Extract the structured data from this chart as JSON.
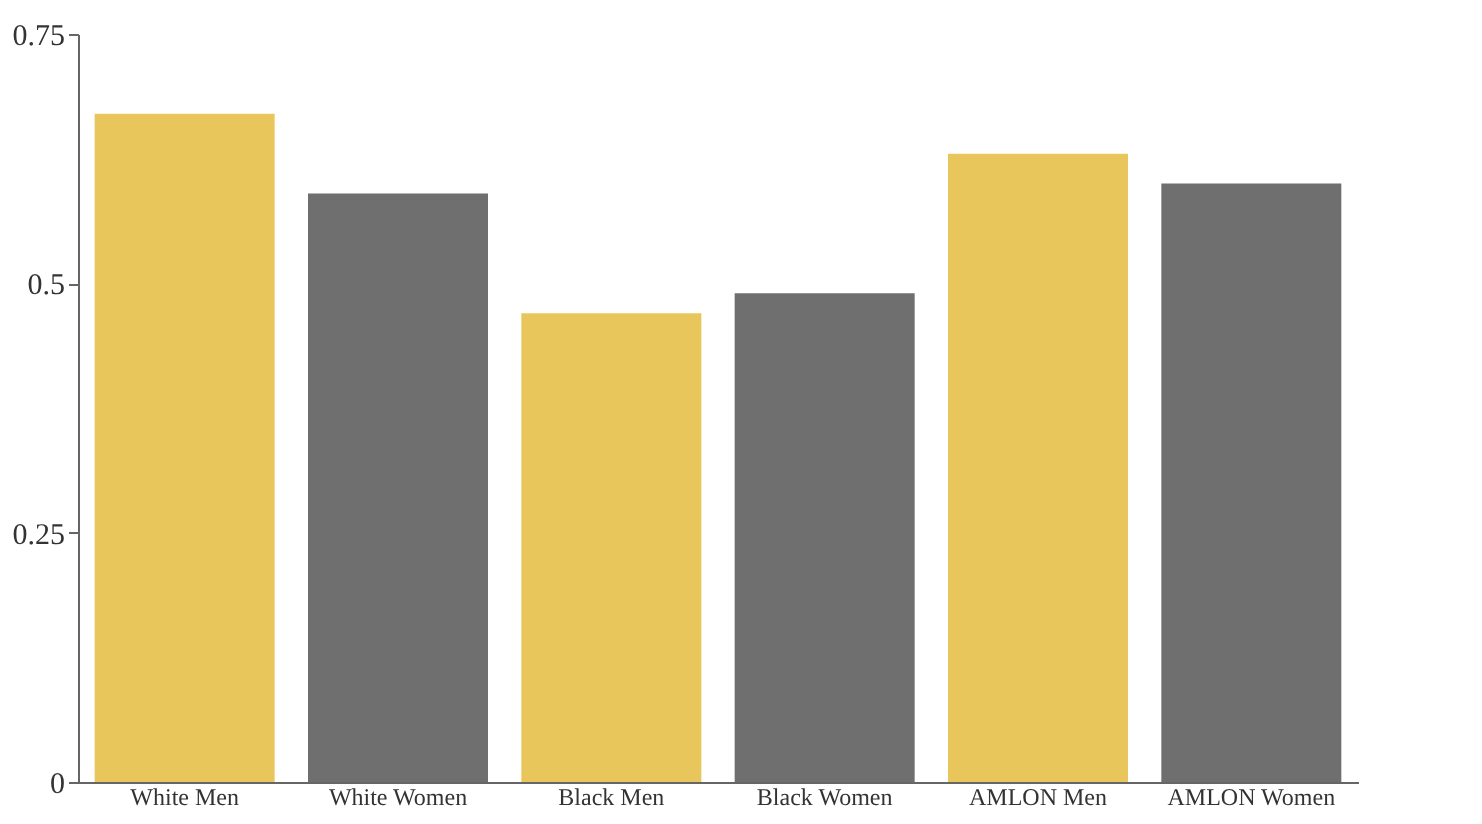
{
  "chart_data": {
    "type": "bar",
    "categories": [
      "White Men",
      "White Women",
      "Black Men",
      "Black Women",
      "AMLON Men",
      "AMLON Women"
    ],
    "values": [
      0.67,
      0.59,
      0.47,
      0.49,
      0.63,
      0.6
    ],
    "colors": [
      "#e9c65c",
      "#6f6f6f",
      "#e9c65c",
      "#6f6f6f",
      "#e9c65c",
      "#6f6f6f"
    ],
    "ylim": [
      0,
      0.75
    ],
    "yticks": [
      0,
      0.25,
      0.5,
      0.75
    ],
    "grid": false
  }
}
